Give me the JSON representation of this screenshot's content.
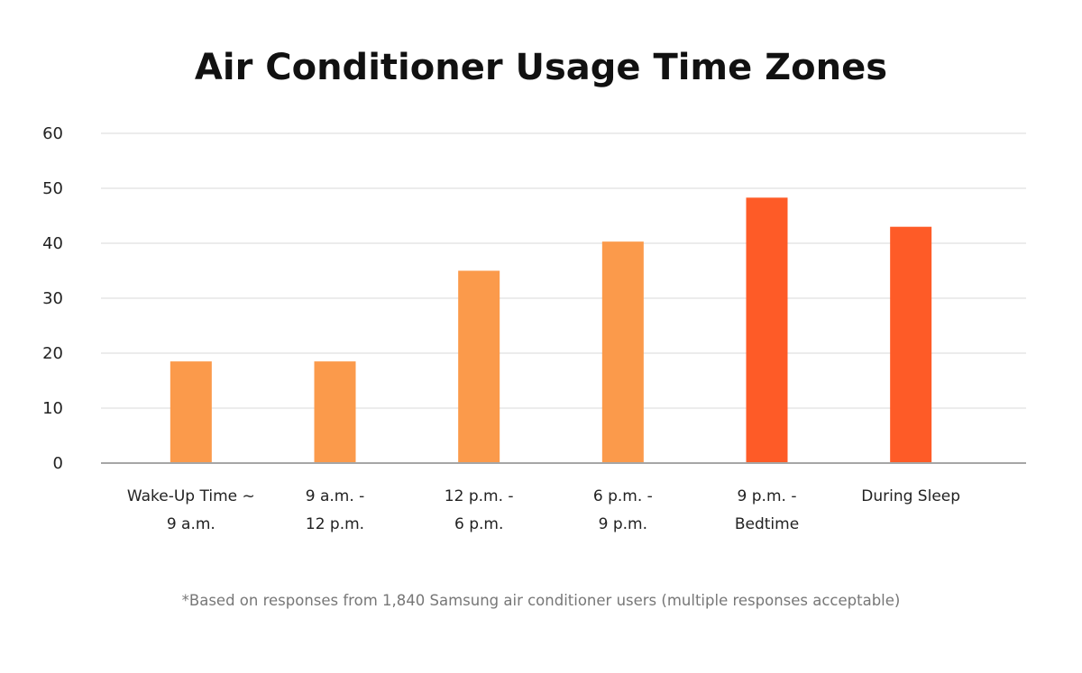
{
  "chart_data": {
    "type": "bar",
    "title": "Air Conditioner Usage Time Zones",
    "categories": [
      [
        "Wake-Up Time ~",
        "9 a.m."
      ],
      [
        "9 a.m. -",
        "12 p.m."
      ],
      [
        "12 p.m. -",
        "6 p.m."
      ],
      [
        "6 p.m. -",
        "9 p.m."
      ],
      [
        "9 p.m. -",
        "Bedtime"
      ],
      [
        "During Sleep"
      ]
    ],
    "values": [
      18.5,
      18.5,
      35,
      40.3,
      48.3,
      43
    ],
    "colors": [
      "#FB9A4B",
      "#FB9A4B",
      "#FB9A4B",
      "#FB9A4B",
      "#FE5B27",
      "#FE5B27"
    ],
    "ylim": [
      0,
      60
    ],
    "yticks": [
      0,
      10,
      20,
      30,
      40,
      50,
      60
    ],
    "grid": true,
    "xlabel": "",
    "ylabel": ""
  },
  "footnote": "*Based on responses from 1,840 Samsung air conditioner users (multiple responses acceptable)"
}
